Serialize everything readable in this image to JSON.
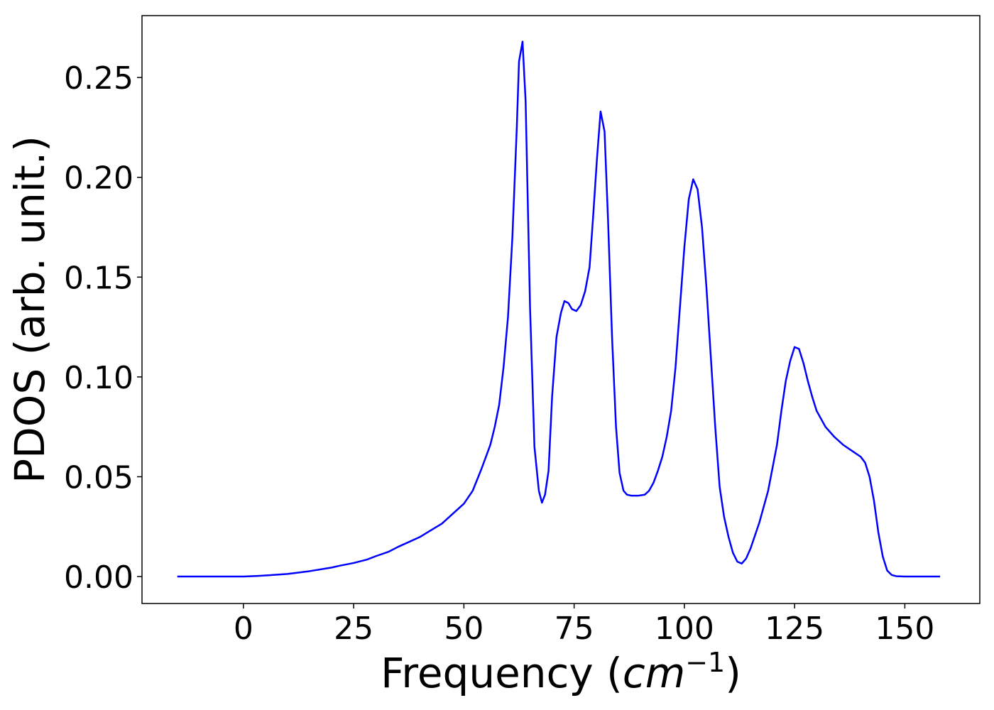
{
  "chart_data": {
    "type": "line",
    "xlabel": "Frequency",
    "xlabel_unit_base": "cm",
    "xlabel_unit_exp": "−1",
    "ylabel": "PDOS (arb. unit.)",
    "xlim": [
      -23,
      167
    ],
    "ylim": [
      -0.0135,
      0.281
    ],
    "x_ticks": [
      0,
      25,
      50,
      75,
      100,
      125,
      150
    ],
    "y_ticks": [
      0.0,
      0.05,
      0.1,
      0.15,
      0.2,
      0.25
    ],
    "y_tick_labels": [
      "0.00",
      "0.05",
      "0.10",
      "0.15",
      "0.20",
      "0.25"
    ],
    "grid": false,
    "line_color": "#0000ff",
    "series": [
      {
        "x": [
          -15.0,
          -5.0,
          0.0,
          3.0,
          6.0,
          10.0,
          15.0,
          20.0,
          22.0,
          25.0,
          28.0,
          30.0,
          33.0,
          35.0,
          37.0,
          40.0,
          42.0,
          45.0,
          47.0,
          50.0,
          52.0,
          54.0,
          56.0,
          57.0,
          58.0,
          59.0,
          60.0,
          61.0,
          62.0,
          62.5,
          63.3,
          64.0,
          65.0,
          66.0,
          67.0,
          67.7,
          68.4,
          69.2,
          70.0,
          71.0,
          72.0,
          72.8,
          73.7,
          74.5,
          75.5,
          76.5,
          77.5,
          78.5,
          79.3,
          80.2,
          81.0,
          81.9,
          82.7,
          83.6,
          84.5,
          85.3,
          86.2,
          87.0,
          88.0,
          89.5,
          91.0,
          92.0,
          93.0,
          94.0,
          95.0,
          96.0,
          97.0,
          98.0,
          99.0,
          100.0,
          101.0,
          102.0,
          103.0,
          104.0,
          105.0,
          106.0,
          107.0,
          108.0,
          109.0,
          110.0,
          111.0,
          112.0,
          113.0,
          114.0,
          115.0,
          117.0,
          119.0,
          121.0,
          122.0,
          123.0,
          124.0,
          125.0,
          126.0,
          127.0,
          128.0,
          129.0,
          130.0,
          132.0,
          134.0,
          136.0,
          138.0,
          140.0,
          141.0,
          142.0,
          143.0,
          144.0,
          145.0,
          146.0,
          147.0,
          148.0,
          150.0,
          155.0,
          158.0
        ],
        "y": [
          0.0,
          0.0,
          0.0,
          0.0003,
          0.0007,
          0.0013,
          0.0027,
          0.0045,
          0.0055,
          0.0068,
          0.0085,
          0.0102,
          0.0125,
          0.0148,
          0.0168,
          0.0198,
          0.0225,
          0.0265,
          0.0305,
          0.0365,
          0.043,
          0.054,
          0.066,
          0.075,
          0.086,
          0.105,
          0.13,
          0.17,
          0.225,
          0.258,
          0.268,
          0.238,
          0.135,
          0.065,
          0.043,
          0.037,
          0.041,
          0.053,
          0.09,
          0.12,
          0.132,
          0.138,
          0.137,
          0.134,
          0.133,
          0.136,
          0.143,
          0.155,
          0.18,
          0.21,
          0.233,
          0.223,
          0.178,
          0.12,
          0.075,
          0.052,
          0.043,
          0.041,
          0.0405,
          0.0405,
          0.041,
          0.043,
          0.047,
          0.053,
          0.06,
          0.07,
          0.083,
          0.105,
          0.135,
          0.165,
          0.189,
          0.199,
          0.194,
          0.175,
          0.145,
          0.11,
          0.075,
          0.045,
          0.03,
          0.02,
          0.012,
          0.0075,
          0.0065,
          0.009,
          0.014,
          0.027,
          0.043,
          0.066,
          0.083,
          0.098,
          0.108,
          0.115,
          0.114,
          0.107,
          0.098,
          0.09,
          0.083,
          0.075,
          0.07,
          0.066,
          0.063,
          0.06,
          0.057,
          0.05,
          0.038,
          0.022,
          0.01,
          0.003,
          0.0008,
          0.0002,
          0.0,
          0.0,
          0.0
        ]
      }
    ]
  }
}
